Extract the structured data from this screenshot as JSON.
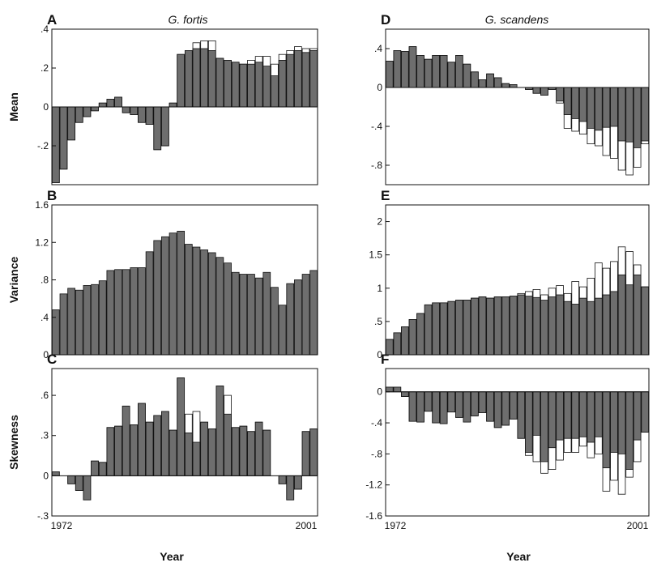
{
  "colors": {
    "bar_fill": "#6e6e6e",
    "bar_outline": "#111111",
    "open_fill": "#ffffff"
  },
  "chart_data": [
    {
      "id": "A",
      "letter": "A",
      "title": "G. fortis",
      "type": "bar",
      "ylabel": "Mean",
      "ylim": [
        -0.4,
        0.4
      ],
      "yticks": [
        -0.4,
        -0.2,
        0,
        0.2,
        0.4
      ],
      "ytick_labels": [
        "",
        "-.2",
        "0",
        ".2",
        ".4"
      ],
      "xtick_labels": [],
      "series": [
        {
          "name": "",
          "values": [
            -0.39,
            -0.32,
            -0.17,
            -0.08,
            -0.05,
            -0.02,
            0.02,
            0.04,
            0.05,
            -0.03,
            -0.04,
            -0.08,
            -0.09,
            -0.22,
            -0.2,
            0.02,
            0.27,
            0.29,
            0.3,
            0.3,
            0.29,
            0.25,
            0.24,
            0.23,
            0.22,
            0.22,
            0.23,
            0.21,
            0.16,
            0.24,
            0.27,
            0.29,
            0.28,
            0.29
          ]
        },
        {
          "name": "",
          "values": [
            -0.39,
            -0.32,
            -0.17,
            -0.08,
            -0.05,
            -0.02,
            0.02,
            0.04,
            0.05,
            -0.03,
            -0.04,
            -0.08,
            -0.09,
            -0.22,
            -0.2,
            0.02,
            0.27,
            0.29,
            0.33,
            0.34,
            0.34,
            0.25,
            0.24,
            0.23,
            0.22,
            0.24,
            0.26,
            0.26,
            0.22,
            0.27,
            0.29,
            0.31,
            0.3,
            0.3
          ]
        }
      ]
    },
    {
      "id": "B",
      "letter": "B",
      "title": "",
      "type": "bar",
      "ylabel": "Variance",
      "ylim": [
        0,
        1.6
      ],
      "yticks": [
        0,
        0.4,
        0.8,
        1.2,
        1.6
      ],
      "ytick_labels": [
        "0",
        ".4",
        ".8",
        "1.2",
        "1.6"
      ],
      "xtick_labels": [],
      "series": [
        {
          "name": "",
          "values": [
            0.48,
            0.65,
            0.71,
            0.69,
            0.74,
            0.75,
            0.79,
            0.9,
            0.91,
            0.91,
            0.93,
            0.93,
            1.1,
            1.22,
            1.26,
            1.3,
            1.32,
            1.18,
            1.15,
            1.12,
            1.09,
            1.04,
            0.98,
            0.88,
            0.86,
            0.86,
            0.82,
            0.88,
            0.72,
            0.53,
            0.76,
            0.8,
            0.86,
            0.9
          ]
        }
      ]
    },
    {
      "id": "C",
      "letter": "C",
      "title": "",
      "type": "bar",
      "ylabel": "Skewness",
      "ylim": [
        -0.3,
        0.8
      ],
      "yticks": [
        -0.3,
        0,
        0.3,
        0.6
      ],
      "ytick_labels": [
        "-.3",
        "0",
        ".3",
        ".6"
      ],
      "xtick_labels": [
        "1972",
        "2001"
      ],
      "series": [
        {
          "name": "",
          "values": [
            0.03,
            0.0,
            -0.06,
            -0.11,
            -0.18,
            0.11,
            0.1,
            0.36,
            0.37,
            0.52,
            0.38,
            0.54,
            0.4,
            0.45,
            0.48,
            0.34,
            0.73,
            0.32,
            0.25,
            0.4,
            0.35,
            0.67,
            0.46,
            0.36,
            0.37,
            0.33,
            0.4,
            0.34,
            0.0,
            -0.06,
            -0.18,
            -0.1,
            0.33,
            0.35
          ]
        },
        {
          "name": "",
          "values": [
            0.03,
            0.0,
            -0.06,
            -0.11,
            -0.18,
            0.11,
            0.1,
            0.36,
            0.37,
            0.52,
            0.38,
            0.54,
            0.4,
            0.45,
            0.48,
            0.34,
            0.73,
            0.46,
            0.48,
            0.4,
            0.35,
            0.67,
            0.6,
            0.36,
            0.37,
            0.33,
            0.4,
            0.34,
            0.0,
            -0.06,
            -0.18,
            -0.1,
            0.33,
            0.35
          ]
        }
      ]
    },
    {
      "id": "D",
      "letter": "D",
      "title": "G. scandens",
      "type": "bar",
      "ylabel": "",
      "ylim": [
        -1.0,
        0.6
      ],
      "yticks": [
        -0.8,
        -0.4,
        0,
        0.4
      ],
      "ytick_labels": [
        "-.8",
        "-.4",
        "0",
        ".4"
      ],
      "xtick_labels": [],
      "series": [
        {
          "name": "",
          "values": [
            0.27,
            0.38,
            0.37,
            0.42,
            0.33,
            0.29,
            0.33,
            0.33,
            0.26,
            0.33,
            0.24,
            0.16,
            0.08,
            0.14,
            0.1,
            0.04,
            0.03,
            0.0,
            -0.02,
            -0.06,
            -0.08,
            -0.02,
            -0.14,
            -0.28,
            -0.32,
            -0.35,
            -0.42,
            -0.44,
            -0.41,
            -0.4,
            -0.55,
            -0.56,
            -0.62,
            -0.55
          ]
        },
        {
          "name": "",
          "values": [
            0.27,
            0.38,
            0.37,
            0.42,
            0.33,
            0.29,
            0.33,
            0.33,
            0.26,
            0.33,
            0.24,
            0.16,
            0.08,
            0.14,
            0.1,
            0.04,
            0.03,
            0.0,
            -0.02,
            -0.06,
            -0.08,
            -0.02,
            -0.16,
            -0.42,
            -0.45,
            -0.48,
            -0.58,
            -0.6,
            -0.7,
            -0.73,
            -0.85,
            -0.9,
            -0.82,
            -0.58
          ]
        }
      ]
    },
    {
      "id": "E",
      "letter": "E",
      "title": "",
      "type": "bar",
      "ylabel": "",
      "ylim": [
        0,
        2.25
      ],
      "yticks": [
        0,
        0.5,
        1,
        1.5,
        2
      ],
      "ytick_labels": [
        "0",
        ".5",
        "1",
        "1.5",
        "2"
      ],
      "xtick_labels": [],
      "series": [
        {
          "name": "",
          "values": [
            0.23,
            0.33,
            0.42,
            0.53,
            0.62,
            0.75,
            0.78,
            0.78,
            0.8,
            0.82,
            0.82,
            0.85,
            0.87,
            0.85,
            0.87,
            0.87,
            0.88,
            0.9,
            0.88,
            0.86,
            0.82,
            0.87,
            0.9,
            0.8,
            0.76,
            0.85,
            0.8,
            0.85,
            0.9,
            0.95,
            1.2,
            1.05,
            1.2,
            1.02
          ]
        },
        {
          "name": "",
          "values": [
            0.23,
            0.33,
            0.42,
            0.53,
            0.62,
            0.75,
            0.78,
            0.78,
            0.8,
            0.82,
            0.82,
            0.85,
            0.87,
            0.85,
            0.87,
            0.87,
            0.88,
            0.92,
            0.95,
            0.98,
            0.9,
            1.0,
            1.04,
            0.92,
            1.1,
            1.02,
            1.15,
            1.38,
            1.3,
            1.4,
            1.62,
            1.55,
            1.35,
            1.02
          ]
        }
      ]
    },
    {
      "id": "F",
      "letter": "F",
      "title": "",
      "type": "bar",
      "ylabel": "",
      "ylim": [
        -1.6,
        0.3
      ],
      "yticks": [
        -1.6,
        -1.2,
        -0.8,
        -0.4,
        0
      ],
      "ytick_labels": [
        "-1.6",
        "-1.2",
        "-.8",
        "-.4",
        "0"
      ],
      "xtick_labels": [
        "1972",
        "2001"
      ],
      "series": [
        {
          "name": "",
          "values": [
            0.06,
            0.06,
            -0.06,
            -0.38,
            -0.39,
            -0.25,
            -0.4,
            -0.41,
            -0.26,
            -0.33,
            -0.39,
            -0.31,
            -0.27,
            -0.38,
            -0.46,
            -0.43,
            -0.35,
            -0.6,
            -0.78,
            -0.56,
            -0.9,
            -0.72,
            -0.62,
            -0.6,
            -0.6,
            -0.58,
            -0.65,
            -0.58,
            -0.98,
            -0.78,
            -0.8,
            -1.0,
            -0.62,
            -0.52
          ]
        },
        {
          "name": "",
          "values": [
            0.06,
            0.06,
            -0.06,
            -0.38,
            -0.39,
            -0.25,
            -0.4,
            -0.41,
            -0.26,
            -0.33,
            -0.39,
            -0.31,
            -0.27,
            -0.38,
            -0.46,
            -0.43,
            -0.35,
            -0.6,
            -0.82,
            -0.9,
            -1.05,
            -1.0,
            -0.88,
            -0.78,
            -0.78,
            -0.7,
            -0.85,
            -0.8,
            -1.28,
            -1.14,
            -1.32,
            -1.1,
            -0.9,
            -0.52
          ]
        }
      ]
    }
  ],
  "shared": {
    "xlabel": "Year"
  }
}
